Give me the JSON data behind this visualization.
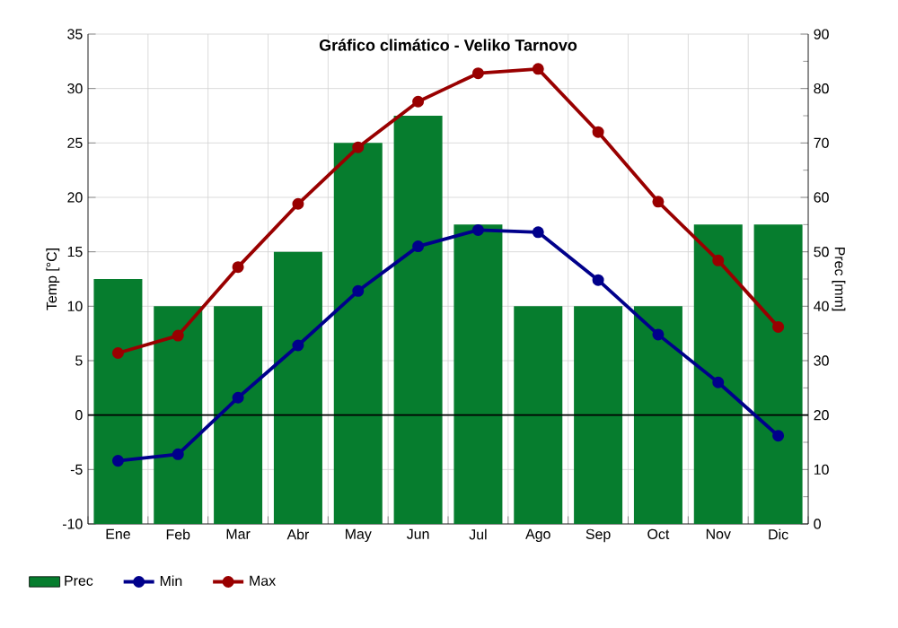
{
  "chart_data": {
    "type": "line",
    "title": "Gráfico climático - Veliko Tarnovo",
    "ylabel": "Temp [°C]",
    "y2label": "Prec [mm]",
    "categories": [
      "Ene",
      "Feb",
      "Mar",
      "Abr",
      "May",
      "Jun",
      "Jul",
      "Ago",
      "Sep",
      "Oct",
      "Nov",
      "Dic"
    ],
    "series": [
      {
        "name": "Prec",
        "type": "bar",
        "axis": "y2",
        "color": "#067d2e",
        "values": [
          45,
          40,
          40,
          50,
          70,
          75,
          55,
          40,
          40,
          40,
          55,
          55
        ]
      },
      {
        "name": "Min",
        "color": "#00008b",
        "values": [
          -4.2,
          -3.6,
          1.6,
          6.4,
          11.4,
          15.5,
          17.0,
          16.8,
          12.4,
          7.4,
          3.0,
          -1.9
        ]
      },
      {
        "name": "Max",
        "color": "#990000",
        "values": [
          5.7,
          7.3,
          13.6,
          19.4,
          24.6,
          28.8,
          31.4,
          31.8,
          26.0,
          19.6,
          14.2,
          8.1
        ]
      }
    ],
    "ylim": [
      -10,
      35
    ],
    "yticks": [
      -10,
      -5,
      0,
      5,
      10,
      15,
      20,
      25,
      30,
      35
    ],
    "y2lim": [
      0,
      90
    ],
    "y2ticks": [
      0,
      10,
      20,
      30,
      40,
      50,
      60,
      70,
      80,
      90
    ],
    "ref_lines": [
      {
        "axis": "y",
        "value": 0,
        "color": "#000000"
      }
    ],
    "grid": true,
    "legend": "bottom",
    "marker": "circle",
    "line_style": "solid"
  }
}
